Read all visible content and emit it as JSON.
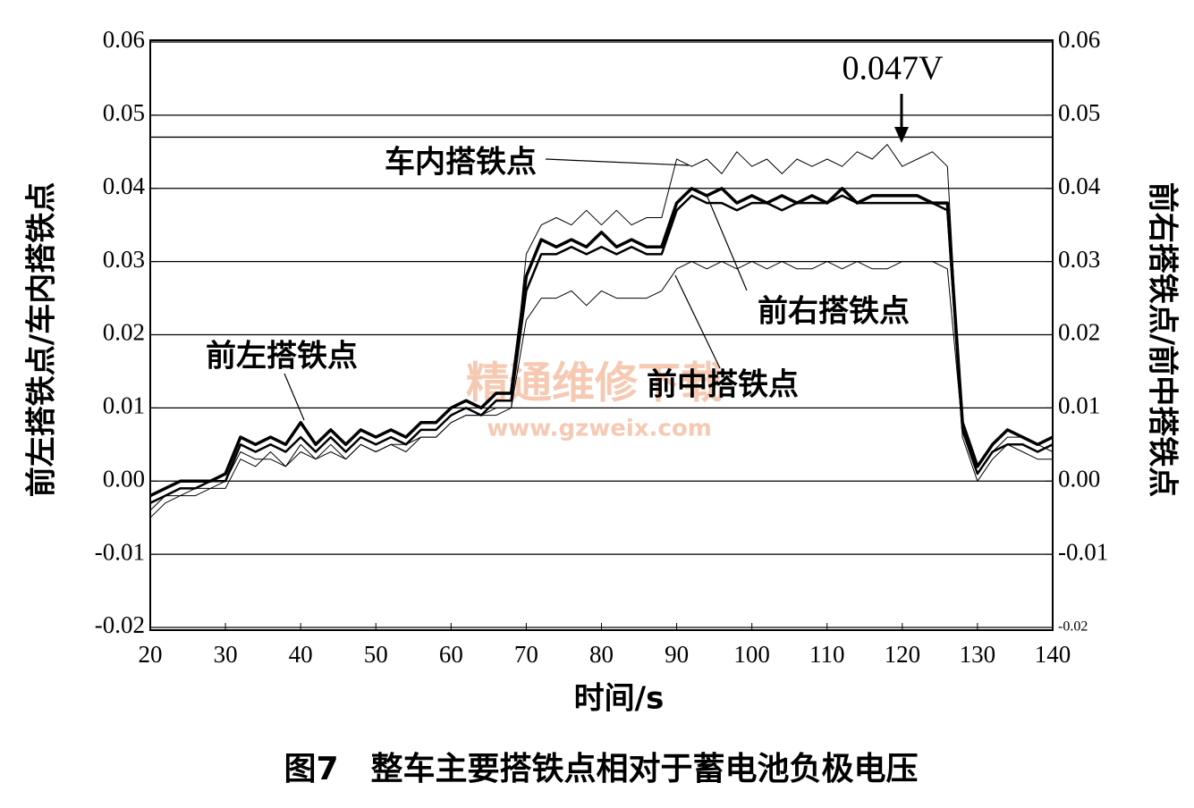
{
  "chart_data": {
    "type": "line",
    "caption": "图7　整车主要搭铁点相对于蓄电池负极电压",
    "x_label": "时间/s",
    "y_label": "前左搭铁点/车内搭铁点",
    "y2_label": "前右搭铁点/前中搭铁点",
    "x": [
      20,
      22,
      24,
      26,
      28,
      30,
      32,
      34,
      36,
      38,
      40,
      42,
      44,
      46,
      48,
      50,
      52,
      54,
      56,
      58,
      60,
      62,
      64,
      66,
      68,
      70,
      72,
      74,
      76,
      78,
      80,
      82,
      84,
      86,
      88,
      90,
      92,
      94,
      96,
      98,
      100,
      102,
      104,
      106,
      108,
      110,
      112,
      114,
      116,
      118,
      120,
      122,
      124,
      126,
      128,
      130,
      132,
      134,
      136,
      138,
      140
    ],
    "xlim": [
      20,
      140
    ],
    "xticks": [
      20,
      30,
      40,
      50,
      60,
      70,
      80,
      90,
      100,
      110,
      120,
      130,
      140
    ],
    "ylim": [
      -0.02,
      0.06
    ],
    "yticks": [
      -0.02,
      -0.01,
      {
        "value": 0,
        "label": "0.00"
      },
      0.01,
      0.02,
      0.03,
      0.04,
      0.05,
      0.06
    ],
    "y2lim": [
      -0.02,
      0.06
    ],
    "y2ticks": [
      -0.02,
      -0.01,
      {
        "value": 0,
        "label": "0.00"
      },
      0.01,
      0.02,
      0.03,
      0.04,
      0.05,
      0.06
    ],
    "grid": true,
    "reference_line": 0.047,
    "series": [
      {
        "name": "前左搭铁点",
        "color": "#000000",
        "width": 2.5,
        "values": [
          -0.003,
          -0.002,
          -0.001,
          -0.001,
          0.0,
          0.0,
          0.005,
          0.004,
          0.005,
          0.004,
          0.006,
          0.004,
          0.006,
          0.004,
          0.006,
          0.005,
          0.006,
          0.005,
          0.007,
          0.007,
          0.009,
          0.01,
          0.009,
          0.011,
          0.011,
          0.026,
          0.031,
          0.031,
          0.032,
          0.031,
          0.032,
          0.031,
          0.032,
          0.031,
          0.031,
          0.037,
          0.039,
          0.038,
          0.038,
          0.037,
          0.038,
          0.038,
          0.037,
          0.038,
          0.038,
          0.038,
          0.039,
          0.038,
          0.038,
          0.038,
          0.038,
          0.038,
          0.038,
          0.037,
          0.007,
          0.001,
          0.004,
          0.005,
          0.005,
          0.004,
          0.005
        ]
      },
      {
        "name": "车内搭铁点",
        "color": "#000000",
        "width": 1,
        "values": [
          -0.005,
          -0.003,
          -0.002,
          -0.002,
          -0.001,
          -0.001,
          0.003,
          0.002,
          0.004,
          0.002,
          0.005,
          0.003,
          0.005,
          0.003,
          0.005,
          0.004,
          0.005,
          0.004,
          0.006,
          0.006,
          0.008,
          0.009,
          0.009,
          0.01,
          0.01,
          0.031,
          0.035,
          0.036,
          0.035,
          0.037,
          0.035,
          0.037,
          0.035,
          0.036,
          0.036,
          0.044,
          0.043,
          0.044,
          0.042,
          0.045,
          0.043,
          0.044,
          0.042,
          0.044,
          0.043,
          0.044,
          0.043,
          0.045,
          0.044,
          0.046,
          0.043,
          0.044,
          0.045,
          0.043,
          0.006,
          0.0,
          0.003,
          0.005,
          0.004,
          0.003,
          0.003
        ]
      },
      {
        "name": "前右搭铁点",
        "color": "#000000",
        "width": 3.5,
        "axis": "y2",
        "values": [
          -0.002,
          -0.001,
          0.0,
          0.0,
          0.0,
          0.001,
          0.006,
          0.005,
          0.006,
          0.005,
          0.008,
          0.005,
          0.007,
          0.005,
          0.007,
          0.006,
          0.007,
          0.006,
          0.008,
          0.008,
          0.01,
          0.011,
          0.01,
          0.012,
          0.012,
          0.028,
          0.033,
          0.032,
          0.033,
          0.032,
          0.034,
          0.032,
          0.033,
          0.032,
          0.032,
          0.038,
          0.04,
          0.039,
          0.04,
          0.038,
          0.039,
          0.038,
          0.039,
          0.038,
          0.039,
          0.038,
          0.04,
          0.038,
          0.039,
          0.039,
          0.039,
          0.039,
          0.038,
          0.038,
          0.008,
          0.002,
          0.005,
          0.007,
          0.006,
          0.005,
          0.006
        ]
      },
      {
        "name": "前中搭铁点",
        "color": "#000000",
        "width": 1,
        "axis": "y2",
        "values": [
          -0.004,
          -0.002,
          -0.002,
          -0.001,
          -0.001,
          0.0,
          0.004,
          0.003,
          0.003,
          0.002,
          0.004,
          0.003,
          0.004,
          0.003,
          0.005,
          0.004,
          0.005,
          0.005,
          0.006,
          0.006,
          0.008,
          0.009,
          0.009,
          0.009,
          0.01,
          0.022,
          0.025,
          0.025,
          0.026,
          0.024,
          0.026,
          0.025,
          0.025,
          0.025,
          0.026,
          0.029,
          0.03,
          0.029,
          0.03,
          0.029,
          0.03,
          0.029,
          0.03,
          0.029,
          0.029,
          0.03,
          0.029,
          0.03,
          0.029,
          0.029,
          0.03,
          0.03,
          0.03,
          0.029,
          0.007,
          0.001,
          0.004,
          0.006,
          0.006,
          0.005,
          0.004
        ]
      }
    ],
    "annotation": "0.047V",
    "watermark": [
      "精通维修下载",
      "www.gzweix.com"
    ]
  }
}
